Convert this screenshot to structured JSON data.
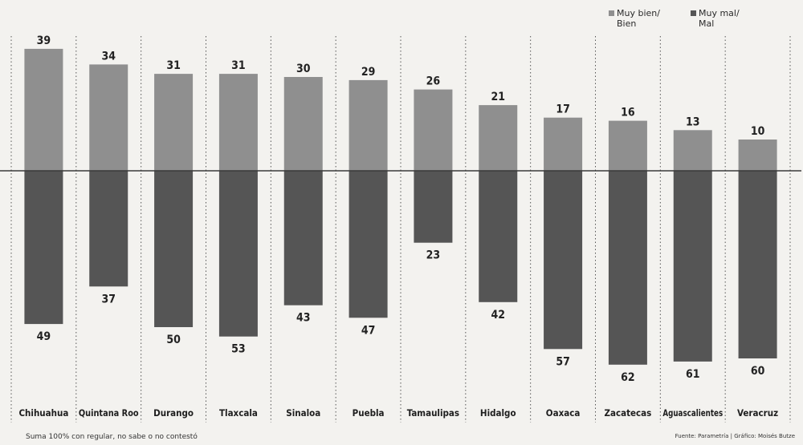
{
  "chart_data": {
    "type": "bar",
    "categories": [
      "Chihuahua",
      "Quintana Roo",
      "Durango",
      "Tlaxcala",
      "Sinaloa",
      "Puebla",
      "Tamaulipas",
      "Hidalgo",
      "Oaxaca",
      "Zacatecas",
      "Aguascalientes",
      "Veracruz"
    ],
    "series": [
      {
        "name": "Muy bien/ Bien",
        "values": [
          39,
          34,
          31,
          31,
          30,
          29,
          26,
          21,
          17,
          16,
          13,
          10
        ],
        "color": "#8f8f8f"
      },
      {
        "name": "Muy mal/ Mal",
        "values": [
          49,
          37,
          50,
          53,
          43,
          47,
          23,
          42,
          57,
          62,
          61,
          60
        ],
        "color": "#555555"
      }
    ],
    "title": "",
    "xlabel": "",
    "ylabel": "",
    "layout": "diverging",
    "grid": "vertical-dotted",
    "legend_position": "top-right"
  },
  "legend": {
    "top_line1": "Muy bien/",
    "top_line2": "Bien",
    "bottom_line1": "Muy mal/",
    "bottom_line2": "Mal"
  },
  "footer": {
    "note": "Suma 100% con regular, no sabe o no contestó",
    "source": "Fuente: Parametría | Gráfico: Moisés Butze"
  }
}
